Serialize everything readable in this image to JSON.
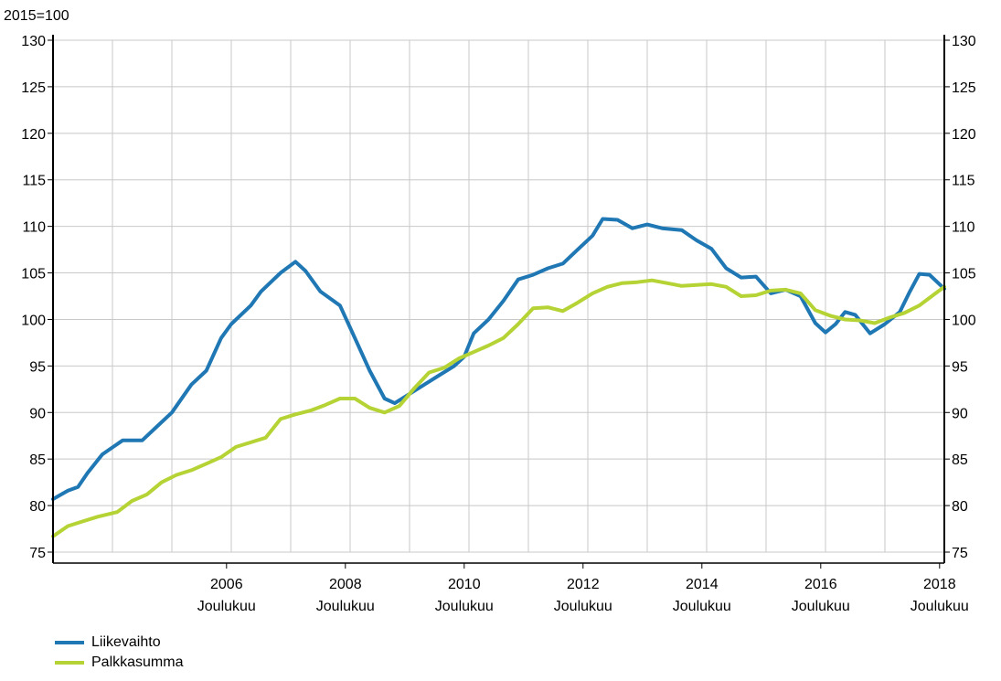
{
  "chart_data": {
    "type": "line",
    "y_unit_label": "2015=100",
    "ylim": [
      75,
      130
    ],
    "y_ticks": [
      75,
      80,
      85,
      90,
      95,
      100,
      105,
      110,
      115,
      120,
      125,
      130
    ],
    "xlim": [
      2004.0,
      2019.0
    ],
    "x_ticks": [
      {
        "year": "2006",
        "month": "Joulukuu",
        "x": 2006.92
      },
      {
        "year": "2008",
        "month": "Joulukuu",
        "x": 2008.92
      },
      {
        "year": "2010",
        "month": "Joulukuu",
        "x": 2010.92
      },
      {
        "year": "2012",
        "month": "Joulukuu",
        "x": 2012.92
      },
      {
        "year": "2014",
        "month": "Joulukuu",
        "x": 2014.92
      },
      {
        "year": "2016",
        "month": "Joulukuu",
        "x": 2016.92
      },
      {
        "year": "2018",
        "month": "Joulukuu",
        "x": 2018.92
      }
    ],
    "grid": true,
    "legend_position": "bottom-left",
    "series": [
      {
        "name": "Liikevaihto",
        "color": "#1f77b4",
        "points": [
          [
            2004.0,
            80.7
          ],
          [
            2004.25,
            81.6
          ],
          [
            2004.42,
            82.0
          ],
          [
            2004.58,
            83.5
          ],
          [
            2004.83,
            85.5
          ],
          [
            2005.17,
            87.0
          ],
          [
            2005.5,
            87.0
          ],
          [
            2005.75,
            88.5
          ],
          [
            2006.0,
            90.0
          ],
          [
            2006.33,
            93.0
          ],
          [
            2006.58,
            94.5
          ],
          [
            2006.83,
            98.0
          ],
          [
            2007.0,
            99.5
          ],
          [
            2007.33,
            101.5
          ],
          [
            2007.5,
            103.0
          ],
          [
            2007.83,
            105.0
          ],
          [
            2008.08,
            106.2
          ],
          [
            2008.25,
            105.2
          ],
          [
            2008.5,
            103.0
          ],
          [
            2008.83,
            101.5
          ],
          [
            2009.08,
            98.0
          ],
          [
            2009.33,
            94.5
          ],
          [
            2009.58,
            91.5
          ],
          [
            2009.75,
            91.0
          ],
          [
            2010.0,
            92.0
          ],
          [
            2010.25,
            93.0
          ],
          [
            2010.5,
            94.0
          ],
          [
            2010.75,
            95.0
          ],
          [
            2010.92,
            96.0
          ],
          [
            2011.08,
            98.5
          ],
          [
            2011.33,
            100.0
          ],
          [
            2011.58,
            102.0
          ],
          [
            2011.83,
            104.3
          ],
          [
            2012.08,
            104.8
          ],
          [
            2012.33,
            105.5
          ],
          [
            2012.58,
            106.0
          ],
          [
            2012.83,
            107.5
          ],
          [
            2013.08,
            109.0
          ],
          [
            2013.25,
            110.8
          ],
          [
            2013.5,
            110.7
          ],
          [
            2013.75,
            109.8
          ],
          [
            2014.0,
            110.2
          ],
          [
            2014.25,
            109.8
          ],
          [
            2014.58,
            109.6
          ],
          [
            2014.83,
            108.5
          ],
          [
            2015.08,
            107.6
          ],
          [
            2015.33,
            105.5
          ],
          [
            2015.58,
            104.5
          ],
          [
            2015.83,
            104.6
          ],
          [
            2016.08,
            102.8
          ],
          [
            2016.33,
            103.2
          ],
          [
            2016.58,
            102.5
          ],
          [
            2016.83,
            99.6
          ],
          [
            2017.0,
            98.6
          ],
          [
            2017.17,
            99.5
          ],
          [
            2017.33,
            100.8
          ],
          [
            2017.5,
            100.5
          ],
          [
            2017.75,
            98.5
          ],
          [
            2018.0,
            99.5
          ],
          [
            2018.25,
            100.8
          ],
          [
            2018.42,
            103.0
          ],
          [
            2018.58,
            104.9
          ],
          [
            2018.75,
            104.8
          ],
          [
            2019.0,
            103.3
          ]
        ]
      },
      {
        "name": "Palkkasumma",
        "color": "#b5d334",
        "points": [
          [
            2004.0,
            76.7
          ],
          [
            2004.25,
            77.8
          ],
          [
            2004.5,
            78.3
          ],
          [
            2004.75,
            78.8
          ],
          [
            2005.08,
            79.3
          ],
          [
            2005.33,
            80.5
          ],
          [
            2005.58,
            81.2
          ],
          [
            2005.83,
            82.5
          ],
          [
            2006.08,
            83.3
          ],
          [
            2006.33,
            83.8
          ],
          [
            2006.58,
            84.5
          ],
          [
            2006.83,
            85.2
          ],
          [
            2007.08,
            86.3
          ],
          [
            2007.33,
            86.8
          ],
          [
            2007.58,
            87.3
          ],
          [
            2007.83,
            89.3
          ],
          [
            2008.08,
            89.8
          ],
          [
            2008.33,
            90.2
          ],
          [
            2008.58,
            90.8
          ],
          [
            2008.83,
            91.5
          ],
          [
            2009.08,
            91.5
          ],
          [
            2009.33,
            90.5
          ],
          [
            2009.58,
            90.0
          ],
          [
            2009.83,
            90.7
          ],
          [
            2010.08,
            92.6
          ],
          [
            2010.33,
            94.3
          ],
          [
            2010.58,
            94.8
          ],
          [
            2010.83,
            95.8
          ],
          [
            2011.08,
            96.5
          ],
          [
            2011.33,
            97.2
          ],
          [
            2011.58,
            98.0
          ],
          [
            2011.83,
            99.5
          ],
          [
            2012.08,
            101.2
          ],
          [
            2012.33,
            101.3
          ],
          [
            2012.58,
            100.9
          ],
          [
            2012.83,
            101.8
          ],
          [
            2013.08,
            102.8
          ],
          [
            2013.33,
            103.5
          ],
          [
            2013.58,
            103.9
          ],
          [
            2013.83,
            104.0
          ],
          [
            2014.08,
            104.2
          ],
          [
            2014.33,
            103.9
          ],
          [
            2014.58,
            103.6
          ],
          [
            2014.83,
            103.7
          ],
          [
            2015.08,
            103.8
          ],
          [
            2015.33,
            103.5
          ],
          [
            2015.58,
            102.5
          ],
          [
            2015.83,
            102.6
          ],
          [
            2016.08,
            103.1
          ],
          [
            2016.33,
            103.2
          ],
          [
            2016.58,
            102.8
          ],
          [
            2016.83,
            101.0
          ],
          [
            2017.08,
            100.4
          ],
          [
            2017.33,
            100.0
          ],
          [
            2017.58,
            99.9
          ],
          [
            2017.83,
            99.6
          ],
          [
            2018.08,
            100.2
          ],
          [
            2018.33,
            100.7
          ],
          [
            2018.58,
            101.5
          ],
          [
            2018.83,
            102.7
          ],
          [
            2019.0,
            103.5
          ]
        ]
      }
    ]
  }
}
